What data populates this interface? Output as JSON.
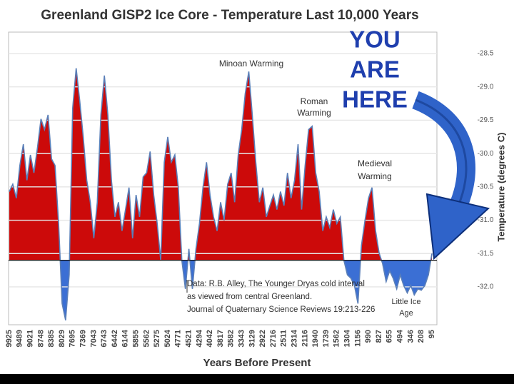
{
  "chart_data": {
    "type": "area",
    "title": "Greenland GISP2 Ice Core - Temperature  Last 10,000 Years",
    "x_label": "Years Before Present",
    "y_label": "Temperature (degrees C)",
    "callout": [
      "YOU",
      "ARE",
      "HERE"
    ],
    "annotations": [
      [
        "Minoan Warming"
      ],
      [
        "Roman",
        "Warming"
      ],
      [
        "Medieval",
        "Warming"
      ],
      [
        "Little Ice",
        "Age"
      ],
      [
        "Data: R.B. Alley,  The Younger Dryas cold interval",
        "as viewed from central Greenland.",
        "Journal of Quaternary  Science Reviews 19:213-226"
      ]
    ],
    "categories": [
      "9925",
      null,
      null,
      "9489",
      null,
      null,
      "9021",
      null,
      null,
      "8748",
      null,
      null,
      "8385",
      null,
      null,
      "8029",
      null,
      null,
      "7695",
      null,
      null,
      "7369",
      null,
      null,
      "7043",
      null,
      null,
      "6743",
      null,
      null,
      "6442",
      null,
      null,
      "6144",
      null,
      null,
      "5855",
      null,
      null,
      "5562",
      null,
      null,
      "5275",
      null,
      null,
      "5024",
      null,
      null,
      "4771",
      null,
      null,
      "4521",
      null,
      null,
      "4294",
      null,
      null,
      "4042",
      null,
      null,
      "3817",
      null,
      null,
      "3582",
      null,
      null,
      "3343",
      null,
      null,
      "3129",
      null,
      null,
      "2922",
      null,
      null,
      "2716",
      null,
      null,
      "2511",
      null,
      null,
      "2314",
      null,
      null,
      "2116",
      null,
      null,
      "1940",
      null,
      null,
      "1739",
      null,
      null,
      "1562",
      null,
      null,
      "1304",
      null,
      null,
      "1156",
      null,
      null,
      "990",
      null,
      null,
      "827",
      null,
      null,
      "655",
      null,
      null,
      "494",
      null,
      null,
      "346",
      null,
      null,
      "208",
      null,
      null,
      "95"
    ],
    "values": [
      -30.57,
      -30.46,
      -30.67,
      -30.18,
      -29.86,
      -30.4,
      -30.02,
      -30.29,
      -29.91,
      -29.48,
      -29.64,
      -29.42,
      -30.08,
      -30.18,
      -31.05,
      -32.25,
      -32.5,
      -31.82,
      -29.32,
      -28.72,
      -29.21,
      -29.75,
      -30.4,
      -30.73,
      -31.27,
      -30.73,
      -29.42,
      -28.83,
      -29.42,
      -30.4,
      -30.95,
      -30.73,
      -31.16,
      -30.84,
      -30.51,
      -31.27,
      -30.62,
      -30.95,
      -30.35,
      -30.29,
      -29.97,
      -30.62,
      -31.05,
      -31.6,
      -30.13,
      -29.75,
      -30.13,
      -30.02,
      -30.51,
      -31.6,
      -32.03,
      -31.43,
      -32.03,
      -31.43,
      -31.05,
      -30.51,
      -30.13,
      -30.62,
      -30.95,
      -31.16,
      -30.73,
      -31.0,
      -30.46,
      -30.29,
      -30.73,
      -30.02,
      -29.64,
      -29.1,
      -28.77,
      -29.42,
      -30.13,
      -30.73,
      -30.51,
      -30.95,
      -30.78,
      -30.62,
      -30.84,
      -30.57,
      -30.78,
      -30.29,
      -30.67,
      -30.4,
      -29.86,
      -30.84,
      -30.18,
      -29.64,
      -29.59,
      -30.29,
      -30.57,
      -31.16,
      -30.95,
      -31.11,
      -30.84,
      -31.05,
      -30.95,
      -31.6,
      -31.82,
      -31.87,
      -31.98,
      -32.25,
      -31.38,
      -31.0,
      -30.67,
      -30.51,
      -31.16,
      -31.49,
      -31.65,
      -31.92,
      -31.76,
      -31.87,
      -32.03,
      -31.82,
      -31.98,
      -32.09,
      -31.98,
      -32.12,
      -32.03,
      -32.05,
      -31.98,
      -31.82,
      -31.5
    ],
    "baseline": -31.6,
    "color_above": "#cc0a0a",
    "color_below": "#3b6fd4",
    "line_color": "#5a7fb8",
    "ylim": [
      -32.6,
      -28.2
    ],
    "yticks": [
      -28.5,
      {
        "value": -29,
        "label": "-29.0"
      },
      -29.5,
      {
        "value": -30,
        "label": "-30.0"
      },
      -30.5,
      {
        "value": -31,
        "label": "-31.0"
      },
      -31.5,
      {
        "value": -32,
        "label": "-32.0"
      }
    ],
    "grid": true
  }
}
